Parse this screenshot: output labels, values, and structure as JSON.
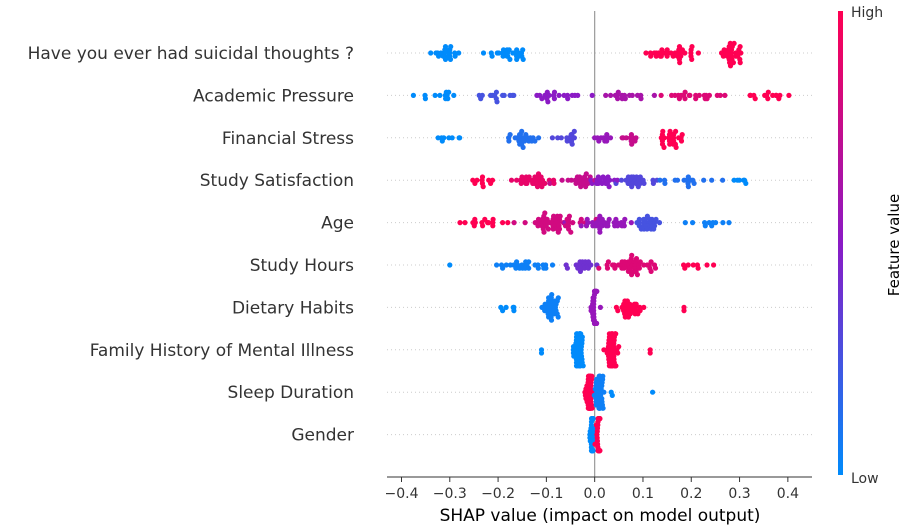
{
  "chart_data": {
    "type": "scatter",
    "subtype": "shap-beeswarm",
    "xlabel": "SHAP value (impact on model output)",
    "xlim": [
      -0.43,
      0.45
    ],
    "xticks": [
      -0.4,
      -0.3,
      -0.2,
      -0.1,
      0.0,
      0.1,
      0.2,
      0.3,
      0.4
    ],
    "xtick_labels": [
      "−0.4",
      "−0.3",
      "−0.2",
      "−0.1",
      "0.0",
      "0.1",
      "0.2",
      "0.3",
      "0.4"
    ],
    "colorbar": {
      "title": "Feature value",
      "high_label": "High",
      "low_label": "Low",
      "low_color": "#008bfb",
      "mid_color": "#8b1ac5",
      "high_color": "#ff0052"
    },
    "features": [
      {
        "name": "Have you ever had suicidal thoughts ?",
        "clusters": [
          {
            "center": -0.305,
            "spread": 0.028,
            "count": 22,
            "feature_value": 0.0
          },
          {
            "center": -0.175,
            "spread": 0.035,
            "count": 26,
            "feature_value": 0.0
          },
          {
            "center": 0.16,
            "spread": 0.045,
            "count": 34,
            "feature_value": 1.0
          },
          {
            "center": 0.285,
            "spread": 0.018,
            "count": 30,
            "feature_value": 1.0
          }
        ]
      },
      {
        "name": "Academic Pressure",
        "clusters": [
          {
            "center": -0.33,
            "spread": 0.05,
            "count": 12,
            "feature_value": 0.0
          },
          {
            "center": -0.21,
            "spread": 0.04,
            "count": 14,
            "feature_value": 0.25
          },
          {
            "center": -0.08,
            "spread": 0.05,
            "count": 20,
            "feature_value": 0.5
          },
          {
            "center": 0.06,
            "spread": 0.05,
            "count": 16,
            "feature_value": 0.62
          },
          {
            "center": 0.2,
            "spread": 0.06,
            "count": 22,
            "feature_value": 0.85
          },
          {
            "center": 0.35,
            "spread": 0.04,
            "count": 14,
            "feature_value": 1.0
          }
        ]
      },
      {
        "name": "Financial Stress",
        "clusters": [
          {
            "center": -0.29,
            "spread": 0.03,
            "count": 8,
            "feature_value": 0.0
          },
          {
            "center": -0.15,
            "spread": 0.03,
            "count": 24,
            "feature_value": 0.12
          },
          {
            "center": -0.06,
            "spread": 0.02,
            "count": 14,
            "feature_value": 0.3
          },
          {
            "center": 0.02,
            "spread": 0.02,
            "count": 10,
            "feature_value": 0.55
          },
          {
            "center": 0.07,
            "spread": 0.02,
            "count": 10,
            "feature_value": 0.75
          },
          {
            "center": 0.16,
            "spread": 0.03,
            "count": 26,
            "feature_value": 1.0
          }
        ]
      },
      {
        "name": "Study Satisfaction",
        "clusters": [
          {
            "center": -0.23,
            "spread": 0.03,
            "count": 10,
            "feature_value": 1.0
          },
          {
            "center": -0.12,
            "spread": 0.04,
            "count": 30,
            "feature_value": 0.9
          },
          {
            "center": -0.03,
            "spread": 0.03,
            "count": 22,
            "feature_value": 0.75
          },
          {
            "center": 0.02,
            "spread": 0.02,
            "count": 18,
            "feature_value": 0.5
          },
          {
            "center": 0.08,
            "spread": 0.03,
            "count": 24,
            "feature_value": 0.3
          },
          {
            "center": 0.2,
            "spread": 0.06,
            "count": 16,
            "feature_value": 0.12
          },
          {
            "center": 0.3,
            "spread": 0.02,
            "count": 6,
            "feature_value": 0.0
          }
        ]
      },
      {
        "name": "Age",
        "clusters": [
          {
            "center": -0.23,
            "spread": 0.04,
            "count": 16,
            "feature_value": 1.0
          },
          {
            "center": -0.08,
            "spread": 0.05,
            "count": 52,
            "feature_value": 0.8
          },
          {
            "center": 0.02,
            "spread": 0.04,
            "count": 34,
            "feature_value": 0.55
          },
          {
            "center": 0.11,
            "spread": 0.03,
            "count": 26,
            "feature_value": 0.25
          },
          {
            "center": 0.24,
            "spread": 0.05,
            "count": 10,
            "feature_value": 0.05
          }
        ]
      },
      {
        "name": "Study Hours",
        "clusters": [
          {
            "center": -0.3,
            "spread": 0.0,
            "count": 1,
            "feature_value": 0.0
          },
          {
            "center": -0.14,
            "spread": 0.04,
            "count": 26,
            "feature_value": 0.05
          },
          {
            "center": -0.03,
            "spread": 0.03,
            "count": 18,
            "feature_value": 0.4
          },
          {
            "center": 0.07,
            "spread": 0.04,
            "count": 46,
            "feature_value": 0.85
          },
          {
            "center": 0.22,
            "spread": 0.03,
            "count": 8,
            "feature_value": 1.0
          }
        ]
      },
      {
        "name": "Dietary Habits",
        "clusters": [
          {
            "center": -0.18,
            "spread": 0.02,
            "count": 6,
            "feature_value": 0.0
          },
          {
            "center": -0.09,
            "spread": 0.02,
            "count": 32,
            "feature_value": 0.05
          },
          {
            "center": 0.0,
            "spread": 0.006,
            "count": 40,
            "feature_value": 0.55
          },
          {
            "center": 0.07,
            "spread": 0.025,
            "count": 30,
            "feature_value": 1.0
          },
          {
            "center": 0.185,
            "spread": 0.0,
            "count": 2,
            "feature_value": 1.0
          }
        ]
      },
      {
        "name": "Family History of Mental Illness",
        "clusters": [
          {
            "center": -0.11,
            "spread": 0.0,
            "count": 2,
            "feature_value": 0.0
          },
          {
            "center": -0.035,
            "spread": 0.01,
            "count": 54,
            "feature_value": 0.0
          },
          {
            "center": 0.035,
            "spread": 0.01,
            "count": 52,
            "feature_value": 1.0
          },
          {
            "center": 0.115,
            "spread": 0.0,
            "count": 2,
            "feature_value": 1.0
          }
        ]
      },
      {
        "name": "Sleep Duration",
        "clusters": [
          {
            "center": -0.01,
            "spread": 0.006,
            "count": 50,
            "feature_value": 1.0
          },
          {
            "center": 0.01,
            "spread": 0.008,
            "count": 40,
            "feature_value": 0.05
          },
          {
            "center": 0.04,
            "spread": 0.005,
            "count": 2,
            "feature_value": 0.0
          },
          {
            "center": 0.12,
            "spread": 0.0,
            "count": 1,
            "feature_value": 0.0
          }
        ]
      },
      {
        "name": "Gender",
        "clusters": [
          {
            "center": -0.005,
            "spread": 0.004,
            "count": 40,
            "feature_value": 0.0
          },
          {
            "center": 0.008,
            "spread": 0.003,
            "count": 35,
            "feature_value": 1.0
          }
        ]
      }
    ]
  }
}
